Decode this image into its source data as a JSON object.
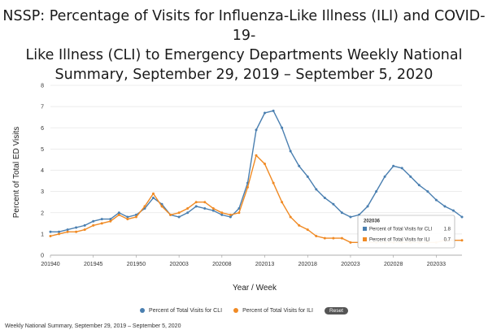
{
  "header": {
    "title_line1": "NSSP: Percentage of Visits for Influenza-Like Illness (ILI) and COVID-19-",
    "title_line2": "Like Illness (CLI) to Emergency Departments Weekly National",
    "title_line3": "Summary, September 29, 2019 – September 5, 2020"
  },
  "legend": {
    "cli_label": "Percent of Total Visits for CLI",
    "ili_label": "Percent of Total Visits for ILI",
    "reset_label": "Reset"
  },
  "tooltip": {
    "week": "202036",
    "cli_label": "Percent of Total Visits for CLI",
    "cli_value": "1.8",
    "ili_label": "Percent of Total Visits for ILI",
    "ili_value": "0.7"
  },
  "footer": {
    "caption": "Weekly National Summary, September 29, 2019 – September 5, 2020"
  },
  "colors": {
    "cli": "#4a7fb0",
    "ili": "#f08a24",
    "grid": "#e6e6e6"
  },
  "chart_data": {
    "type": "line",
    "title": "NSSP: Percentage of Visits for Influenza-Like Illness (ILI) and COVID-19-Like Illness (CLI) to Emergency Departments Weekly National Summary, September 29, 2019 – September 5, 2020",
    "xlabel": "Year / Week",
    "ylabel": "Percent of Total ED Visits",
    "ylim": [
      0,
      8
    ],
    "yticks": [
      0,
      1,
      2,
      3,
      4,
      5,
      6,
      7,
      8
    ],
    "grid": true,
    "legend_position": "bottom",
    "x": [
      "201940",
      "201941",
      "201942",
      "201943",
      "201944",
      "201945",
      "201946",
      "201947",
      "201948",
      "201949",
      "201950",
      "201951",
      "201952",
      "202001",
      "202002",
      "202003",
      "202004",
      "202005",
      "202006",
      "202007",
      "202008",
      "202009",
      "202010",
      "202011",
      "202012",
      "202013",
      "202014",
      "202015",
      "202016",
      "202017",
      "202018",
      "202019",
      "202020",
      "202021",
      "202022",
      "202023",
      "202024",
      "202025",
      "202026",
      "202027",
      "202028",
      "202029",
      "202030",
      "202031",
      "202032",
      "202033",
      "202034",
      "202035",
      "202036"
    ],
    "x_tick_labels": [
      "201940",
      "201945",
      "201950",
      "202003",
      "202008",
      "202013",
      "202018",
      "202023",
      "202028",
      "202033"
    ],
    "series": [
      {
        "name": "Percent of Total Visits for CLI",
        "values": [
          1.1,
          1.1,
          1.2,
          1.3,
          1.4,
          1.6,
          1.7,
          1.7,
          2.0,
          1.8,
          1.9,
          2.2,
          2.7,
          2.4,
          1.9,
          1.8,
          2.0,
          2.3,
          2.2,
          2.1,
          1.9,
          1.8,
          2.2,
          3.4,
          5.9,
          6.7,
          6.8,
          6.0,
          4.9,
          4.2,
          3.7,
          3.1,
          2.7,
          2.4,
          2.0,
          1.8,
          1.9,
          2.3,
          3.0,
          3.7,
          4.2,
          4.1,
          3.7,
          3.3,
          3.0,
          2.6,
          2.3,
          2.1,
          1.8
        ]
      },
      {
        "name": "Percent of Total Visits for ILI",
        "values": [
          0.9,
          1.0,
          1.1,
          1.1,
          1.2,
          1.4,
          1.5,
          1.6,
          1.9,
          1.7,
          1.8,
          2.3,
          2.9,
          2.3,
          1.9,
          2.0,
          2.2,
          2.5,
          2.5,
          2.2,
          2.0,
          1.9,
          2.0,
          3.2,
          4.7,
          4.3,
          3.4,
          2.5,
          1.8,
          1.4,
          1.2,
          0.9,
          0.8,
          0.8,
          0.8,
          0.6,
          0.6,
          0.6,
          0.6,
          0.6,
          0.6,
          0.6,
          0.6,
          0.6,
          0.6,
          0.6,
          0.7,
          0.7,
          0.7
        ]
      }
    ]
  }
}
